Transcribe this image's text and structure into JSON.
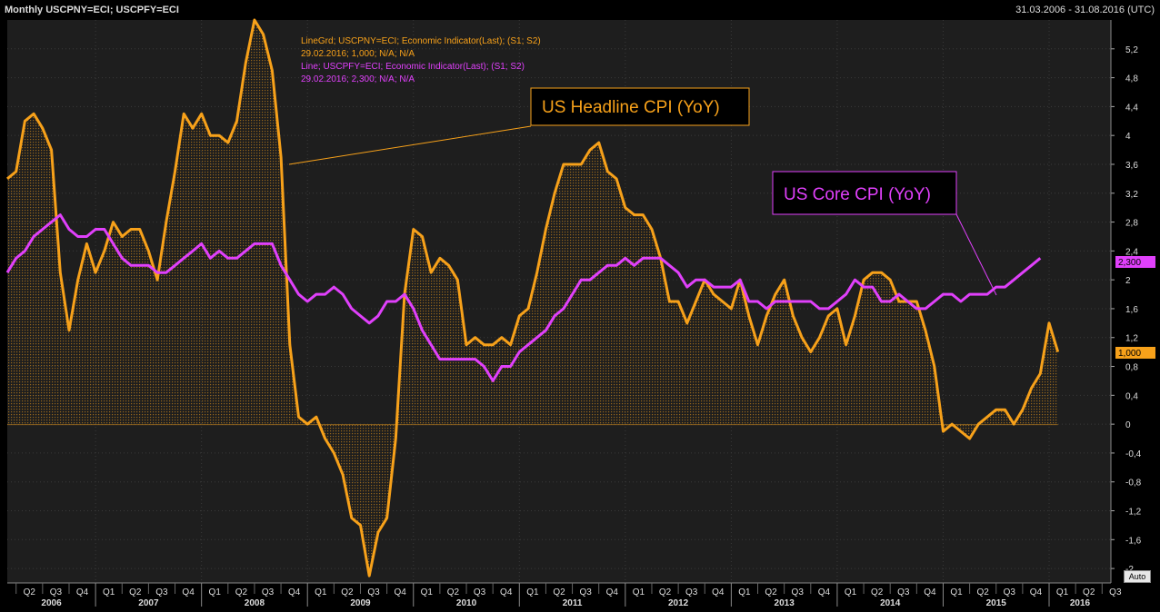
{
  "header": {
    "title": "Monthly USCPNY=ECI; USCPFY=ECI",
    "date_range": "31.03.2006 - 31.08.2016 (UTC)"
  },
  "legend": {
    "headline_line1": "LineGrd; USCPNY=ECI; Economic Indicator(Last); (S1; S2)",
    "headline_line2": "29.02.2016; 1,000; N/A; N/A",
    "core_line1": "Line; USCPFY=ECI; Economic Indicator(Last); (S1; S2)",
    "core_line2": "29.02.2016; 2,300; N/A; N/A"
  },
  "callouts": {
    "headline": "US Headline CPI (YoY)",
    "core": "US Core CPI (YoY)"
  },
  "last_values": {
    "headline": "1,000",
    "core": "2,300"
  },
  "auto_button": "Auto",
  "colors": {
    "headline": "#F7A11A",
    "core": "#E040FB",
    "background": "#1e1e1e",
    "grid": "#3a3a3a"
  },
  "chart_data": {
    "type": "line",
    "x_start": "2006-03",
    "x_end": "2016-08",
    "ylim": [
      -2.2,
      5.6
    ],
    "y_ticks": [
      "5,2",
      "4,8",
      "4,4",
      "4",
      "3,6",
      "3,2",
      "2,8",
      "2,4",
      "2",
      "1,6",
      "1,2",
      "0,8",
      "0,4",
      "0",
      "-0,4",
      "-0,8",
      "-1,2",
      "-1,6",
      "-2"
    ],
    "y_tick_values": [
      5.2,
      4.8,
      4.4,
      4.0,
      3.6,
      3.2,
      2.8,
      2.4,
      2.0,
      1.6,
      1.2,
      0.8,
      0.4,
      0,
      -0.4,
      -0.8,
      -1.2,
      -1.6,
      -2.0
    ],
    "quarter_labels": [
      "Q2",
      "Q3",
      "Q4",
      "Q1",
      "Q2",
      "Q3",
      "Q4",
      "Q1",
      "Q2",
      "Q3",
      "Q4",
      "Q1",
      "Q2",
      "Q3",
      "Q4",
      "Q1",
      "Q2",
      "Q3",
      "Q4",
      "Q1",
      "Q2",
      "Q3",
      "Q4",
      "Q1",
      "Q2",
      "Q3",
      "Q4",
      "Q1",
      "Q2",
      "Q3",
      "Q4",
      "Q1",
      "Q2",
      "Q3",
      "Q4",
      "Q1",
      "Q2",
      "Q3",
      "Q4",
      "Q1",
      "Q2",
      "Q3"
    ],
    "years": [
      "2006",
      "2007",
      "2008",
      "2009",
      "2010",
      "2011",
      "2012",
      "2013",
      "2014",
      "2015",
      "2016"
    ],
    "grid": true,
    "series": [
      {
        "key": "headline",
        "style": "area-line",
        "start": "2006-03",
        "values": [
          3.4,
          3.5,
          4.2,
          4.3,
          4.1,
          3.8,
          2.1,
          1.3,
          2.0,
          2.5,
          2.1,
          2.4,
          2.8,
          2.6,
          2.7,
          2.7,
          2.4,
          2.0,
          2.8,
          3.5,
          4.3,
          4.1,
          4.3,
          4.0,
          4.0,
          3.9,
          4.2,
          5.0,
          5.6,
          5.4,
          4.9,
          3.7,
          1.1,
          0.1,
          0.0,
          0.1,
          -0.2,
          -0.4,
          -0.7,
          -1.3,
          -1.4,
          -2.1,
          -1.5,
          -1.3,
          -0.2,
          1.8,
          2.7,
          2.6,
          2.1,
          2.3,
          2.2,
          2.0,
          1.1,
          1.2,
          1.1,
          1.1,
          1.2,
          1.1,
          1.5,
          1.6,
          2.1,
          2.7,
          3.2,
          3.6,
          3.6,
          3.6,
          3.8,
          3.9,
          3.5,
          3.4,
          3.0,
          2.9,
          2.9,
          2.7,
          2.3,
          1.7,
          1.7,
          1.4,
          1.7,
          2.0,
          1.8,
          1.7,
          1.6,
          2.0,
          1.5,
          1.1,
          1.5,
          1.8,
          2.0,
          1.5,
          1.2,
          1.0,
          1.2,
          1.5,
          1.6,
          1.1,
          1.5,
          2.0,
          2.1,
          2.1,
          2.0,
          1.7,
          1.7,
          1.7,
          1.3,
          0.8,
          -0.1,
          0.0,
          -0.1,
          -0.2,
          0.0,
          0.1,
          0.2,
          0.2,
          0.0,
          0.2,
          0.5,
          0.7,
          1.4,
          1.0
        ]
      },
      {
        "key": "core",
        "style": "line",
        "start": "2006-03",
        "values": [
          2.1,
          2.3,
          2.4,
          2.6,
          2.7,
          2.8,
          2.9,
          2.7,
          2.6,
          2.6,
          2.7,
          2.7,
          2.5,
          2.3,
          2.2,
          2.2,
          2.2,
          2.1,
          2.1,
          2.2,
          2.3,
          2.4,
          2.5,
          2.3,
          2.4,
          2.3,
          2.3,
          2.4,
          2.5,
          2.5,
          2.5,
          2.2,
          2.0,
          1.8,
          1.7,
          1.8,
          1.8,
          1.9,
          1.8,
          1.6,
          1.5,
          1.4,
          1.5,
          1.7,
          1.7,
          1.8,
          1.6,
          1.3,
          1.1,
          0.9,
          0.9,
          0.9,
          0.9,
          0.9,
          0.8,
          0.6,
          0.8,
          0.8,
          1.0,
          1.1,
          1.2,
          1.3,
          1.5,
          1.6,
          1.8,
          2.0,
          2.0,
          2.1,
          2.2,
          2.2,
          2.3,
          2.2,
          2.3,
          2.3,
          2.3,
          2.2,
          2.1,
          1.9,
          2.0,
          2.0,
          1.9,
          1.9,
          1.9,
          2.0,
          1.7,
          1.7,
          1.6,
          1.7,
          1.7,
          1.7,
          1.7,
          1.7,
          1.6,
          1.6,
          1.7,
          1.8,
          2.0,
          1.9,
          1.9,
          1.7,
          1.7,
          1.8,
          1.7,
          1.6,
          1.6,
          1.7,
          1.8,
          1.8,
          1.7,
          1.8,
          1.8,
          1.8,
          1.9,
          1.9,
          2.0,
          2.1,
          2.2,
          2.3
        ]
      }
    ]
  }
}
